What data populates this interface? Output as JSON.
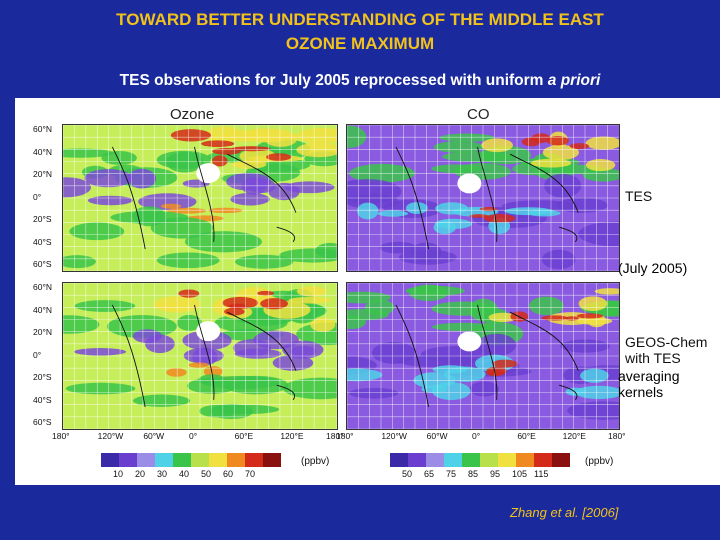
{
  "header": {
    "title_line1": "TOWARD BETTER UNDERSTANDING OF THE MIDDLE EAST",
    "title_line2": "OZONE MAXIMUM",
    "subtitle_main": "TES observations for July 2005 reprocessed with uniform ",
    "subtitle_italic": "a priori"
  },
  "panels": {
    "ozone_title": "Ozone",
    "co_title": "CO"
  },
  "labels": {
    "tes": "TES",
    "july": "(July 2005)",
    "geos_line1": "GEOS-Chem",
    "geos_line2": "with TES",
    "avg_line1": "averaging",
    "avg_line2": "kernels"
  },
  "lat_ticks": [
    "60°N",
    "40°N",
    "20°N",
    "0°",
    "20°S",
    "40°S",
    "60°S"
  ],
  "lon_ticks": [
    "180°",
    "120°W",
    "60°W",
    "0°",
    "60°E",
    "120°E",
    "180°"
  ],
  "colorbars": {
    "ozone_ticks": [
      "10",
      "20",
      "30",
      "40",
      "50",
      "60",
      "70"
    ],
    "co_ticks": [
      "50",
      "65",
      "75",
      "85",
      "95",
      "105",
      "115"
    ],
    "unit": "(ppbv)",
    "colors": [
      "#3b2aa8",
      "#6a3fd0",
      "#9b8ce8",
      "#4fd1e8",
      "#3ac44a",
      "#b8e04a",
      "#f0e040",
      "#f08a20",
      "#d42a1a",
      "#8a1010"
    ]
  },
  "citation": "Zhang et al. [2006]"
}
